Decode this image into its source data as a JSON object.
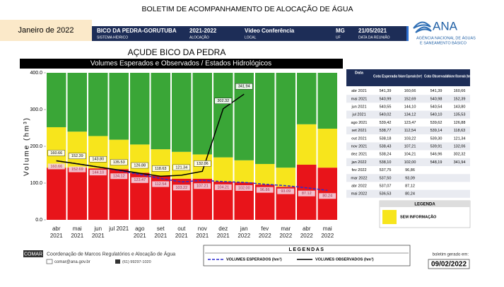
{
  "header": {
    "title": "BOLETIM DE ACOMPANHAMENTO DE ALOCAÇÃO DE ÁGUA",
    "period": "Janeiro de 2022",
    "fields": [
      {
        "value": "BICO DA PEDRA-GORUTUBA",
        "label": "SISTEMA HÍDRICO"
      },
      {
        "value": "2021-2022",
        "label": "ALOCAÇÃO"
      },
      {
        "value": "Vídeo Conferência",
        "label": "LOCAL"
      },
      {
        "value": "MG",
        "label": "UF"
      },
      {
        "value": "21/05/2021",
        "label": "DATA DA REUNIÃO"
      }
    ],
    "logo": {
      "name": "ANA",
      "line1": "AGÊNCIA NACIONAL DE ÁGUAS",
      "line2": "E SANEAMENTO BÁSICO"
    }
  },
  "reservoir": "AÇUDE BICO DA PEDRA",
  "chart_data": {
    "type": "bar",
    "stacked": true,
    "title": "Volumes Esperados e Observados / Estados Hidrológicos",
    "y_label": "Volume (hm³)",
    "categories": [
      "abr 2021",
      "mai 2021",
      "jun 2021",
      "jul 2021",
      "ago 2021",
      "set 2021",
      "out 2021",
      "nov 2021",
      "dez 2021",
      "jan 2022",
      "fev 2022",
      "mar 2022",
      "abr 2022",
      "mai 2022"
    ],
    "ylim": [
      0,
      400
    ],
    "yticks": [
      {
        "value": 0,
        "label": "0.0"
      },
      {
        "value": 100,
        "label": "100.0"
      },
      {
        "value": 200,
        "label": "200.0"
      },
      {
        "value": 300,
        "label": "300.0"
      },
      {
        "value": 400,
        "label": "400.0"
      }
    ],
    "series": [
      {
        "type": "bar",
        "color": "#e8141a",
        "values": [
          142,
          142,
          140,
          138,
          128,
          120,
          112,
          112,
          104,
          102,
          96,
          90,
          150,
          142
        ]
      },
      {
        "type": "bar",
        "name": "SEM INFORMAÇÃO",
        "color": "#f7e51c",
        "values": [
          110,
          98,
          88,
          80,
          77,
          72,
          73,
          66,
          66,
          60,
          56,
          52,
          110,
          106
        ]
      },
      {
        "type": "bar",
        "color": "#3aa637",
        "values": [
          148,
          160,
          172,
          182,
          195,
          208,
          215,
          222,
          230,
          238,
          248,
          258,
          140,
          152
        ]
      },
      {
        "type": "line",
        "name": "VOLUMES ESPERADOS (hm³)",
        "color": "#2b2bcf",
        "dashed": true,
        "values": [
          160.66,
          152.69,
          144.1,
          134.12,
          123.47,
          112.54,
          103.22,
          107.21,
          104.21,
          102.0,
          96.86,
          93.09,
          87.12,
          80.24
        ],
        "value_labels": [
          "160.66",
          "152.69",
          "144.10",
          "134.12",
          "123.47",
          "112.54",
          "103.22",
          "107.21",
          "104.21",
          "102.00",
          "96.86",
          "93.09",
          "87.12",
          "80.24"
        ]
      },
      {
        "type": "line",
        "name": "VOLUMES OBSERVADOS (hm³)",
        "color": "#000000",
        "dashed": false,
        "values": [
          160.66,
          152.39,
          143.8,
          135.53,
          126.88,
          118.63,
          121.34,
          132.06,
          302.32,
          341.94,
          null,
          null,
          null,
          null
        ],
        "value_labels": [
          "160.66",
          "152.39",
          "143.80",
          "135.53",
          "126.88",
          "118.63",
          "121.34",
          "132.06",
          "302.32",
          "341.94",
          null,
          null,
          null,
          null
        ]
      }
    ],
    "state_legend_title": "LEGENDA",
    "line_legend_title": "LEGENDAS"
  },
  "table": {
    "headers": [
      "Data",
      "Cota Esperada",
      "Volume Esperado (hm³)",
      "Cota Observada",
      "Volume Observado (hm³)"
    ],
    "rows": [
      [
        "abr 2021",
        "541,39",
        "160,66",
        "541,39",
        "160,66"
      ],
      [
        "mai 2021",
        "540,99",
        "152,69",
        "540,98",
        "152,39"
      ],
      [
        "jun 2021",
        "540,55",
        "144,10",
        "540,54",
        "143,80"
      ],
      [
        "jul 2021",
        "540,02",
        "134,12",
        "540,10",
        "135,53"
      ],
      [
        "ago 2021",
        "539,42",
        "123,47",
        "539,62",
        "126,88"
      ],
      [
        "set 2021",
        "538,77",
        "112,54",
        "539,14",
        "118,63"
      ],
      [
        "out 2021",
        "538,18",
        "103,22",
        "539,30",
        "121,34"
      ],
      [
        "nov 2021",
        "538,43",
        "107,21",
        "539,91",
        "132,06"
      ],
      [
        "dez 2021",
        "538,24",
        "104,21",
        "546,96",
        "302,32"
      ],
      [
        "jan 2022",
        "538,10",
        "102,00",
        "548,19",
        "341,94"
      ],
      [
        "fev 2022",
        "537,75",
        "96,86"
      ],
      [
        "mar 2022",
        "537,50",
        "93,09"
      ],
      [
        "abr 2022",
        "537,07",
        "87,12"
      ],
      [
        "mai 2022",
        "536,53",
        "80,24"
      ]
    ]
  },
  "footer": {
    "org": "COMAR",
    "org_name": "Coordenação de Marcos Regulatórios e Alocação de Água",
    "email": "comar@ana.gov.br",
    "phone": "(61) 99297-1020",
    "generated_label": "boletim gerado em:",
    "generated_date": "09/02/2022"
  }
}
